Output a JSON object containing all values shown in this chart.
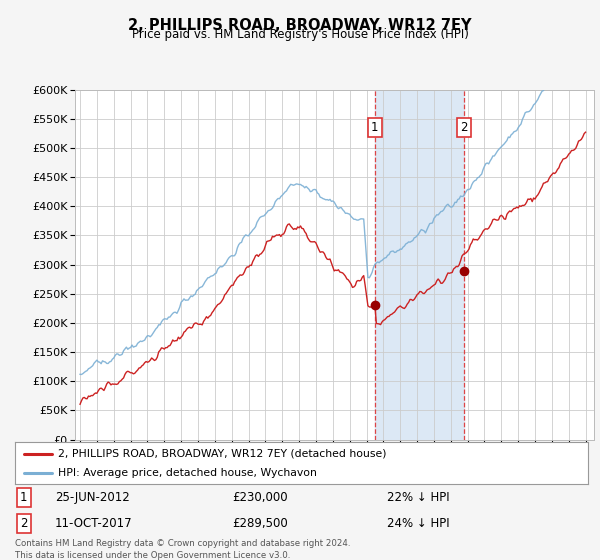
{
  "title": "2, PHILLIPS ROAD, BROADWAY, WR12 7EY",
  "subtitle": "Price paid vs. HM Land Registry's House Price Index (HPI)",
  "hpi_color": "#7bafd4",
  "price_color": "#cc2222",
  "sale1_date": "25-JUN-2012",
  "sale1_price": 230000,
  "sale1_pct": "22% ↓ HPI",
  "sale1_x": 2012.48,
  "sale2_date": "11-OCT-2017",
  "sale2_price": 289500,
  "sale2_pct": "24% ↓ HPI",
  "sale2_x": 2017.78,
  "ylim": [
    0,
    600000
  ],
  "yticks": [
    0,
    50000,
    100000,
    150000,
    200000,
    250000,
    300000,
    350000,
    400000,
    450000,
    500000,
    550000,
    600000
  ],
  "xlim": [
    1994.7,
    2025.5
  ],
  "legend_line1": "2, PHILLIPS ROAD, BROADWAY, WR12 7EY (detached house)",
  "legend_line2": "HPI: Average price, detached house, Wychavon",
  "footer": "Contains HM Land Registry data © Crown copyright and database right 2024.\nThis data is licensed under the Open Government Licence v3.0.",
  "background_color": "#f5f5f5",
  "plot_bg_color": "#ffffff",
  "grid_color": "#cccccc",
  "span_color": "#dce8f5",
  "vline_color": "#dd3333"
}
